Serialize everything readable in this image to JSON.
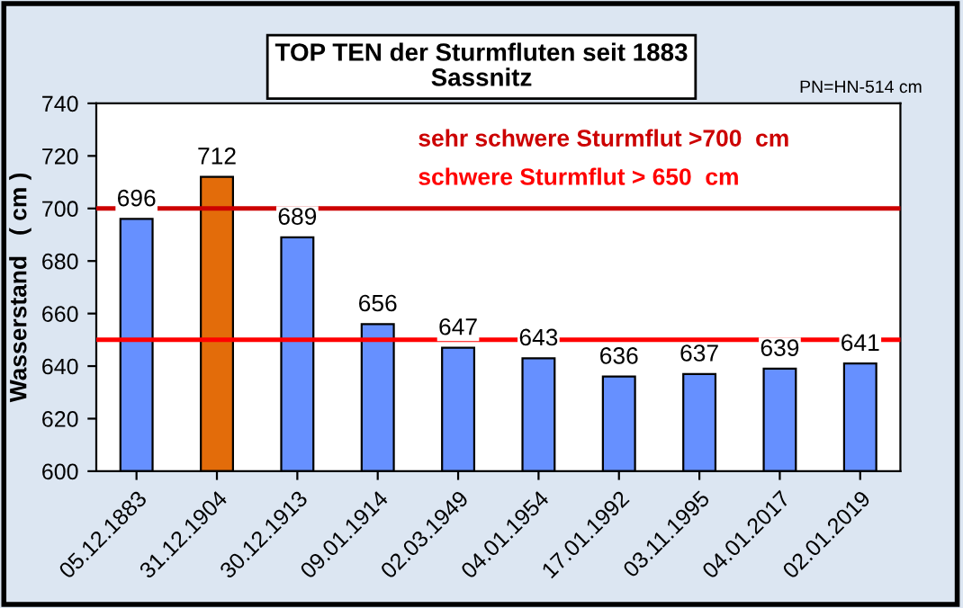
{
  "chart_data": {
    "type": "bar",
    "title": "TOP TEN der Sturmfluten seit 1883\nSassnitz",
    "ylabel": "Wasserstand   ( cm )",
    "categories": [
      "05.12.1883",
      "31.12.1904",
      "30.12.1913",
      "09.01.1914",
      "02.03.1949",
      "04.01.1954",
      "17.01.1992",
      "03.11.1995",
      "04.01.2017",
      "02.01.2019"
    ],
    "values": [
      696,
      712,
      689,
      656,
      647,
      643,
      636,
      637,
      639,
      641
    ],
    "colors": [
      "#6690ff",
      "#e36c0a",
      "#6690ff",
      "#6690ff",
      "#6690ff",
      "#6690ff",
      "#6690ff",
      "#6690ff",
      "#6690ff",
      "#6690ff"
    ],
    "ylim": [
      600,
      740
    ],
    "yticks": [
      600,
      620,
      640,
      660,
      680,
      700,
      720,
      740
    ],
    "grid": false,
    "data_labels": true,
    "ref_lines": [
      {
        "axis": "y",
        "value": 700,
        "label": "sehr schwere Sturmflut >700  cm",
        "color": "#cc0000"
      },
      {
        "axis": "y",
        "value": 650,
        "label": "schwere Sturmflut > 650  cm",
        "color": "#ff0000"
      }
    ],
    "annotations": [
      "PN=HN-514 cm"
    ]
  }
}
